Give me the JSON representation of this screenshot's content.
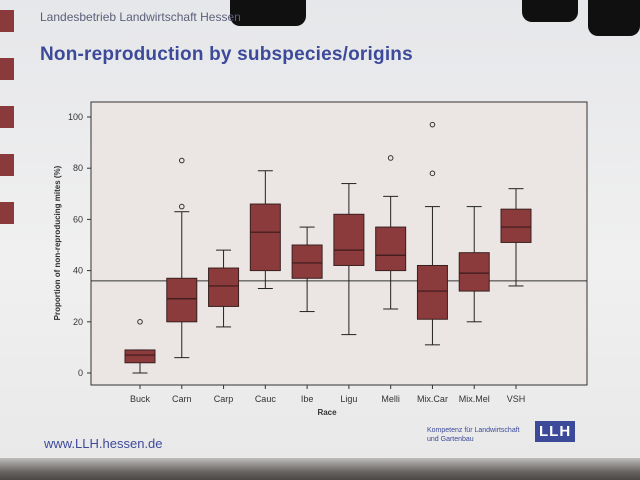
{
  "slide": {
    "organization": "Landesbetrieb Landwirtschaft Hessen",
    "title": "Non-reproduction by subspecies/origins",
    "footer_url": "www.LLH.hessen.de",
    "footer_org_line1": "Kompetenz für Landwirtschaft",
    "footer_org_line2": "und Gartenbau",
    "logo_text": "LLH",
    "accent_color": "#3d4a9a",
    "box_color": "#8b3b3b"
  },
  "chart_data": {
    "type": "boxplot",
    "xlabel": "Race",
    "ylabel": "Proportion of non-reproducing mites (%)",
    "ylim": [
      0,
      100
    ],
    "yticks": [
      0,
      20,
      40,
      60,
      80,
      100
    ],
    "reference_line": 36,
    "categories": [
      "Buck",
      "Carn",
      "Carp",
      "Cauc",
      "Ibe",
      "Ligu",
      "Melli",
      "Mix.Car",
      "Mix.Mel",
      "VSH"
    ],
    "boxes": [
      {
        "min": 0,
        "q1": 4,
        "median": 7,
        "q3": 9,
        "max": 9,
        "outliers": [
          20
        ]
      },
      {
        "min": 6,
        "q1": 20,
        "median": 29,
        "q3": 37,
        "max": 63,
        "outliers": [
          65,
          83
        ]
      },
      {
        "min": 18,
        "q1": 26,
        "median": 34,
        "q3": 41,
        "max": 48,
        "outliers": []
      },
      {
        "min": 33,
        "q1": 40,
        "median": 55,
        "q3": 66,
        "max": 79,
        "outliers": []
      },
      {
        "min": 24,
        "q1": 37,
        "median": 43,
        "q3": 50,
        "max": 57,
        "outliers": []
      },
      {
        "min": 15,
        "q1": 42,
        "median": 48,
        "q3": 62,
        "max": 74,
        "outliers": []
      },
      {
        "min": 25,
        "q1": 40,
        "median": 46,
        "q3": 57,
        "max": 69,
        "outliers": [
          84
        ]
      },
      {
        "min": 11,
        "q1": 21,
        "median": 32,
        "q3": 42,
        "max": 65,
        "outliers": [
          78,
          97
        ]
      },
      {
        "min": 20,
        "q1": 32,
        "median": 39,
        "q3": 47,
        "max": 65,
        "outliers": []
      },
      {
        "min": 34,
        "q1": 51,
        "median": 57,
        "q3": 64,
        "max": 72,
        "outliers": []
      }
    ]
  }
}
